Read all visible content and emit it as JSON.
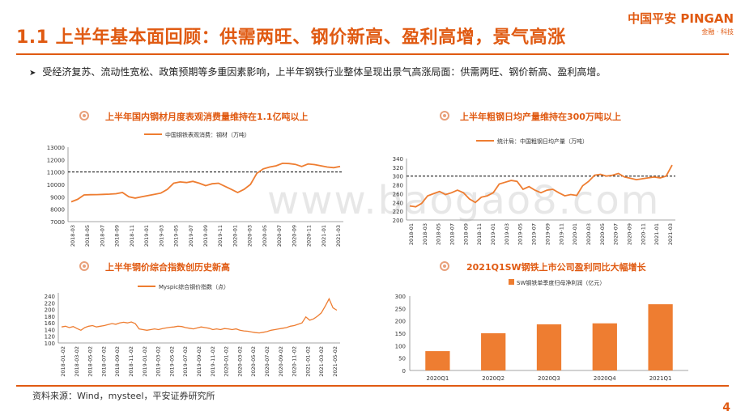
{
  "header": {
    "title": "1.1 上半年基本面回顾：供需两旺、钢价新高、盈利高增，景气高涨",
    "logo": "中国平安 PINGAN",
    "logo_sub": "金融 · 科技"
  },
  "bullet": "受经济复苏、流动性宽松、政策预期等多重因素影响，上半年钢铁行业整体呈现出景气高涨局面：供需两旺、钢价新高、盈利高增。",
  "watermark": "www.baogao8.com",
  "source": "资料来源：Wind，mysteel，平安证券研究所",
  "page_number": "4",
  "colors": {
    "accent": "#e05a12",
    "line": "#ee7d31",
    "bar": "#ee7d31"
  },
  "chart_data": [
    {
      "id": "consumption",
      "type": "line",
      "panel_title": "上半年国内钢材月度表观消费量维持在1.1亿吨以上",
      "legend": "中国钢铁表观消费：钢材（万吨）",
      "ylim": [
        7000,
        13000
      ],
      "yticks": [
        7000,
        8000,
        9000,
        10000,
        11000,
        12000,
        13000
      ],
      "reference_line": 11000,
      "xtick_labels": [
        "2018-03",
        "2018-05",
        "2018-07",
        "2018-09",
        "2018-11",
        "2019-01",
        "2019-03",
        "2019-05",
        "2019-07",
        "2019-09",
        "2019-11",
        "2020-01",
        "2020-03",
        "2020-05",
        "2020-07",
        "2020-09",
        "2020-11",
        "2021-01",
        "2021-03"
      ],
      "series": [
        {
          "values": [
            8600,
            8800,
            9150,
            9170,
            9180,
            9200,
            9220,
            9250,
            9350,
            9000,
            8900,
            9000,
            9100,
            9200,
            9300,
            9600,
            10100,
            10200,
            10150,
            10250,
            10100,
            9900,
            10050,
            10100,
            9850,
            9600,
            9350,
            9600,
            10000,
            10900,
            11250,
            11400,
            11500,
            11700,
            11680,
            11620,
            11450,
            11650,
            11600,
            11500,
            11400,
            11350,
            11450
          ]
        }
      ]
    },
    {
      "id": "crude-steel",
      "type": "line",
      "panel_title": "上半年粗钢日均产量维持在300万吨以上",
      "legend": "统计局：中国粗钢日均产量（万吨）",
      "ylim": [
        200,
        340
      ],
      "yticks": [
        200,
        220,
        240,
        260,
        280,
        300,
        320,
        340
      ],
      "reference_line": 300,
      "xtick_labels": [
        "2018-01",
        "2018-03",
        "2018-05",
        "2018-07",
        "2018-09",
        "2018-11",
        "2019-01",
        "2019-03",
        "2019-05",
        "2019-07",
        "2019-09",
        "2019-11",
        "2020-01",
        "2020-03",
        "2020-05",
        "2020-07",
        "2020-09",
        "2020-11",
        "2021-01",
        "2021-03"
      ],
      "series": [
        {
          "values": [
            232,
            230,
            238,
            255,
            260,
            265,
            258,
            262,
            268,
            262,
            248,
            240,
            252,
            255,
            262,
            282,
            286,
            290,
            288,
            270,
            276,
            268,
            262,
            268,
            270,
            262,
            255,
            258,
            256,
            278,
            288,
            302,
            304,
            300,
            302,
            306,
            298,
            295,
            292,
            294,
            296,
            298,
            296,
            300,
            325
          ]
        }
      ]
    },
    {
      "id": "mysteel-index",
      "type": "line",
      "panel_title": "上半年钢价综合指数创历史新高",
      "legend": "Myspic综合钢价指数（点）",
      "ylim": [
        100,
        250
      ],
      "yticks": [
        100,
        120,
        140,
        160,
        180,
        200,
        220,
        240
      ],
      "xtick_labels": [
        "2018-01-02",
        "2018-03-02",
        "2018-05-02",
        "2018-07-02",
        "2018-09-02",
        "2018-11-02",
        "2019-01-02",
        "2019-03-02",
        "2019-05-02",
        "2019-07-02",
        "2019-09-02",
        "2019-11-02",
        "2020-01-02",
        "2020-03-02",
        "2020-05-02",
        "2020-07-02",
        "2020-09-02",
        "2020-11-02",
        "2021-01-02",
        "2021-03-02",
        "2021-05-02"
      ],
      "series": [
        {
          "values": [
            148,
            150,
            146,
            149,
            143,
            138,
            146,
            150,
            152,
            148,
            150,
            152,
            155,
            158,
            156,
            160,
            162,
            160,
            163,
            158,
            142,
            140,
            138,
            140,
            142,
            140,
            143,
            145,
            147,
            148,
            150,
            149,
            146,
            144,
            142,
            145,
            148,
            146,
            144,
            140,
            142,
            140,
            143,
            142,
            140,
            142,
            138,
            136,
            135,
            133,
            131,
            130,
            132,
            134,
            138,
            140,
            142,
            144,
            146,
            150,
            152,
            156,
            160,
            178,
            168,
            172,
            180,
            190,
            210,
            232,
            205,
            198
          ]
        }
      ]
    },
    {
      "id": "profit",
      "type": "bar",
      "panel_title": "2021Q1SW钢铁上市公司盈利同比大幅增长",
      "legend": "SW钢铁单季度归母净利润（亿元）",
      "ylim": [
        0,
        300
      ],
      "yticks": [
        0,
        50,
        100,
        150,
        200,
        250,
        300
      ],
      "categories": [
        "2020Q1",
        "2020Q2",
        "2020Q3",
        "2020Q4",
        "2021Q1"
      ],
      "series": [
        {
          "values": [
            78,
            150,
            186,
            190,
            267
          ]
        }
      ]
    }
  ]
}
